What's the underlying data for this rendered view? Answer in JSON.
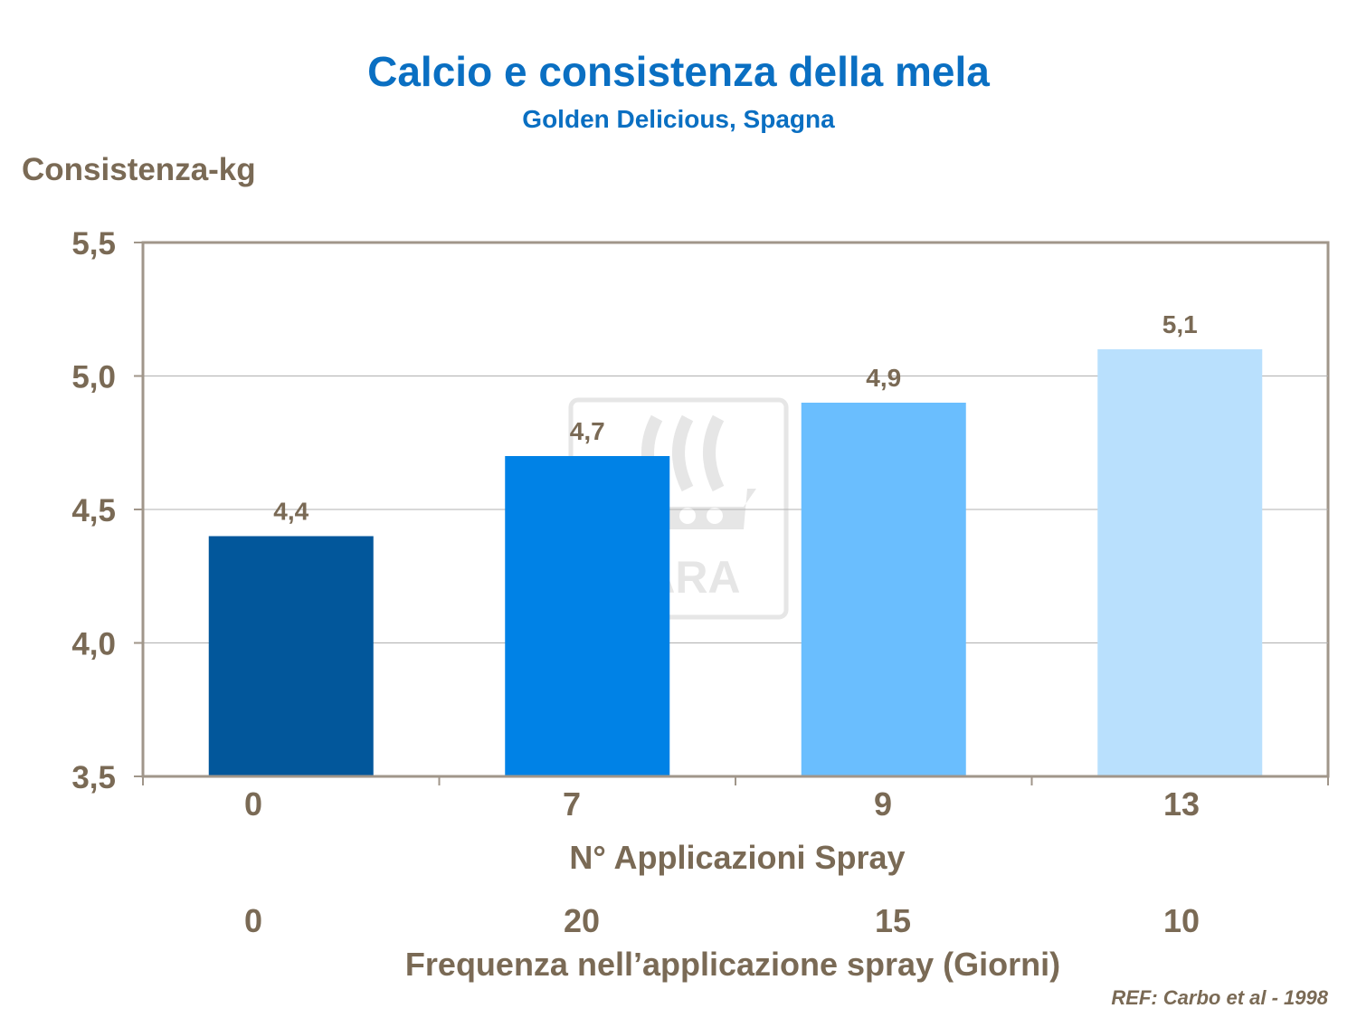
{
  "chart_data": {
    "type": "bar",
    "title": "Calcio e consistenza della mela",
    "subtitle": "Golden Delicious,  Spagna",
    "ylabel": "Consistenza-kg",
    "xlabel": "N° Applicazioni Spray",
    "categories": [
      "0",
      "7",
      "9",
      "13"
    ],
    "values": [
      4.4,
      4.7,
      4.9,
      5.1
    ],
    "data_labels": [
      "4,4",
      "4,7",
      "4,9",
      "5,1"
    ],
    "secondary_xlabel": "Frequenza nell’applicazione spray (Giorni)",
    "secondary_categories": [
      "0",
      "20",
      "15",
      "10"
    ],
    "yticks": [
      3.5,
      4.0,
      4.5,
      5.0,
      5.5
    ],
    "ytick_labels": [
      "3,5",
      "4,0",
      "4,5",
      "5,0",
      "5,5"
    ],
    "ylim": [
      3.5,
      5.5
    ],
    "grid": true,
    "legend": "none",
    "colors": [
      "#02579b",
      "#0082e6",
      "#6abefe",
      "#b9e0fd"
    ],
    "reference": "REF: Carbo et al - 1998",
    "watermark": "YARA"
  }
}
